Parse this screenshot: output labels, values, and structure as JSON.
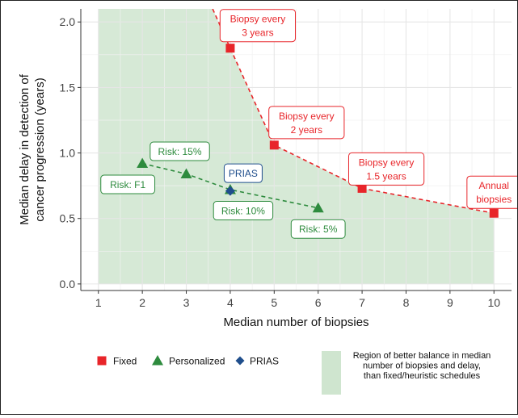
{
  "chart_data": {
    "type": "scatter",
    "xlabel": "Median number of biopsies",
    "ylabel": "Median delay in detection of cancer progression (years)",
    "ylabel_lines": [
      "Median delay in detection of",
      "cancer progression (years)"
    ],
    "xlim": [
      0.6,
      10.4
    ],
    "ylim": [
      -0.05,
      2.1
    ],
    "x_ticks": [
      1,
      2,
      3,
      4,
      5,
      6,
      7,
      8,
      9,
      10
    ],
    "y_ticks": [
      0.0,
      0.5,
      1.0,
      1.5,
      2.0
    ],
    "y_tick_labels": [
      "0.0",
      "0.5",
      "1.0",
      "1.5",
      "2.0"
    ],
    "grid": true,
    "colors": {
      "fixed": "#e8252a",
      "personalized": "#2e8b3e",
      "prias": "#1f4e8c",
      "region": "#cfe5cf",
      "panel_bg": "#ffffff",
      "grid": "#e6e6e6"
    },
    "series": [
      {
        "key": "fixed",
        "name": "Fixed",
        "marker": "square",
        "line": "dashed",
        "points": [
          {
            "x": 3.6,
            "y": 2.1,
            "label": ""
          },
          {
            "x": 4.0,
            "y": 1.8,
            "label": "Biopsy every\n3 years"
          },
          {
            "x": 5.0,
            "y": 1.06,
            "label": "Biopsy every\n2 years"
          },
          {
            "x": 7.0,
            "y": 0.73,
            "label": "Biopsy every\n1.5 years"
          },
          {
            "x": 10.0,
            "y": 0.54,
            "label": "Annual\nbiopsies"
          }
        ]
      },
      {
        "key": "personalized",
        "name": "Personalized",
        "marker": "triangle",
        "line": "dashed",
        "points": [
          {
            "x": 2.0,
            "y": 0.92,
            "label": "Risk: F1"
          },
          {
            "x": 3.0,
            "y": 0.84,
            "label": "Risk: 15%"
          },
          {
            "x": 4.0,
            "y": 0.72,
            "label": "Risk: 10%"
          },
          {
            "x": 6.0,
            "y": 0.58,
            "label": "Risk: 5%"
          }
        ]
      },
      {
        "key": "prias",
        "name": "PRIAS",
        "marker": "diamond",
        "line": "none",
        "points": [
          {
            "x": 4.0,
            "y": 0.71,
            "label": "PRIAS"
          }
        ]
      }
    ],
    "region": {
      "description": "Region of better balance in median number of biopsies and delay, than fixed/heuristic schedules",
      "legend_lines": [
        "Region of better balance in median",
        "number of biopsies and delay,",
        "than fixed/heuristic schedules"
      ],
      "boundary": [
        [
          1,
          2.1
        ],
        [
          3.6,
          2.1
        ],
        [
          4.0,
          1.8
        ],
        [
          5.0,
          1.06
        ],
        [
          7.0,
          0.73
        ],
        [
          10.0,
          0.54
        ],
        [
          10.0,
          0.0
        ],
        [
          1,
          0.0
        ]
      ]
    },
    "legend": {
      "placement": "bottom",
      "items": [
        "Fixed",
        "Personalized",
        "PRIAS"
      ]
    }
  }
}
